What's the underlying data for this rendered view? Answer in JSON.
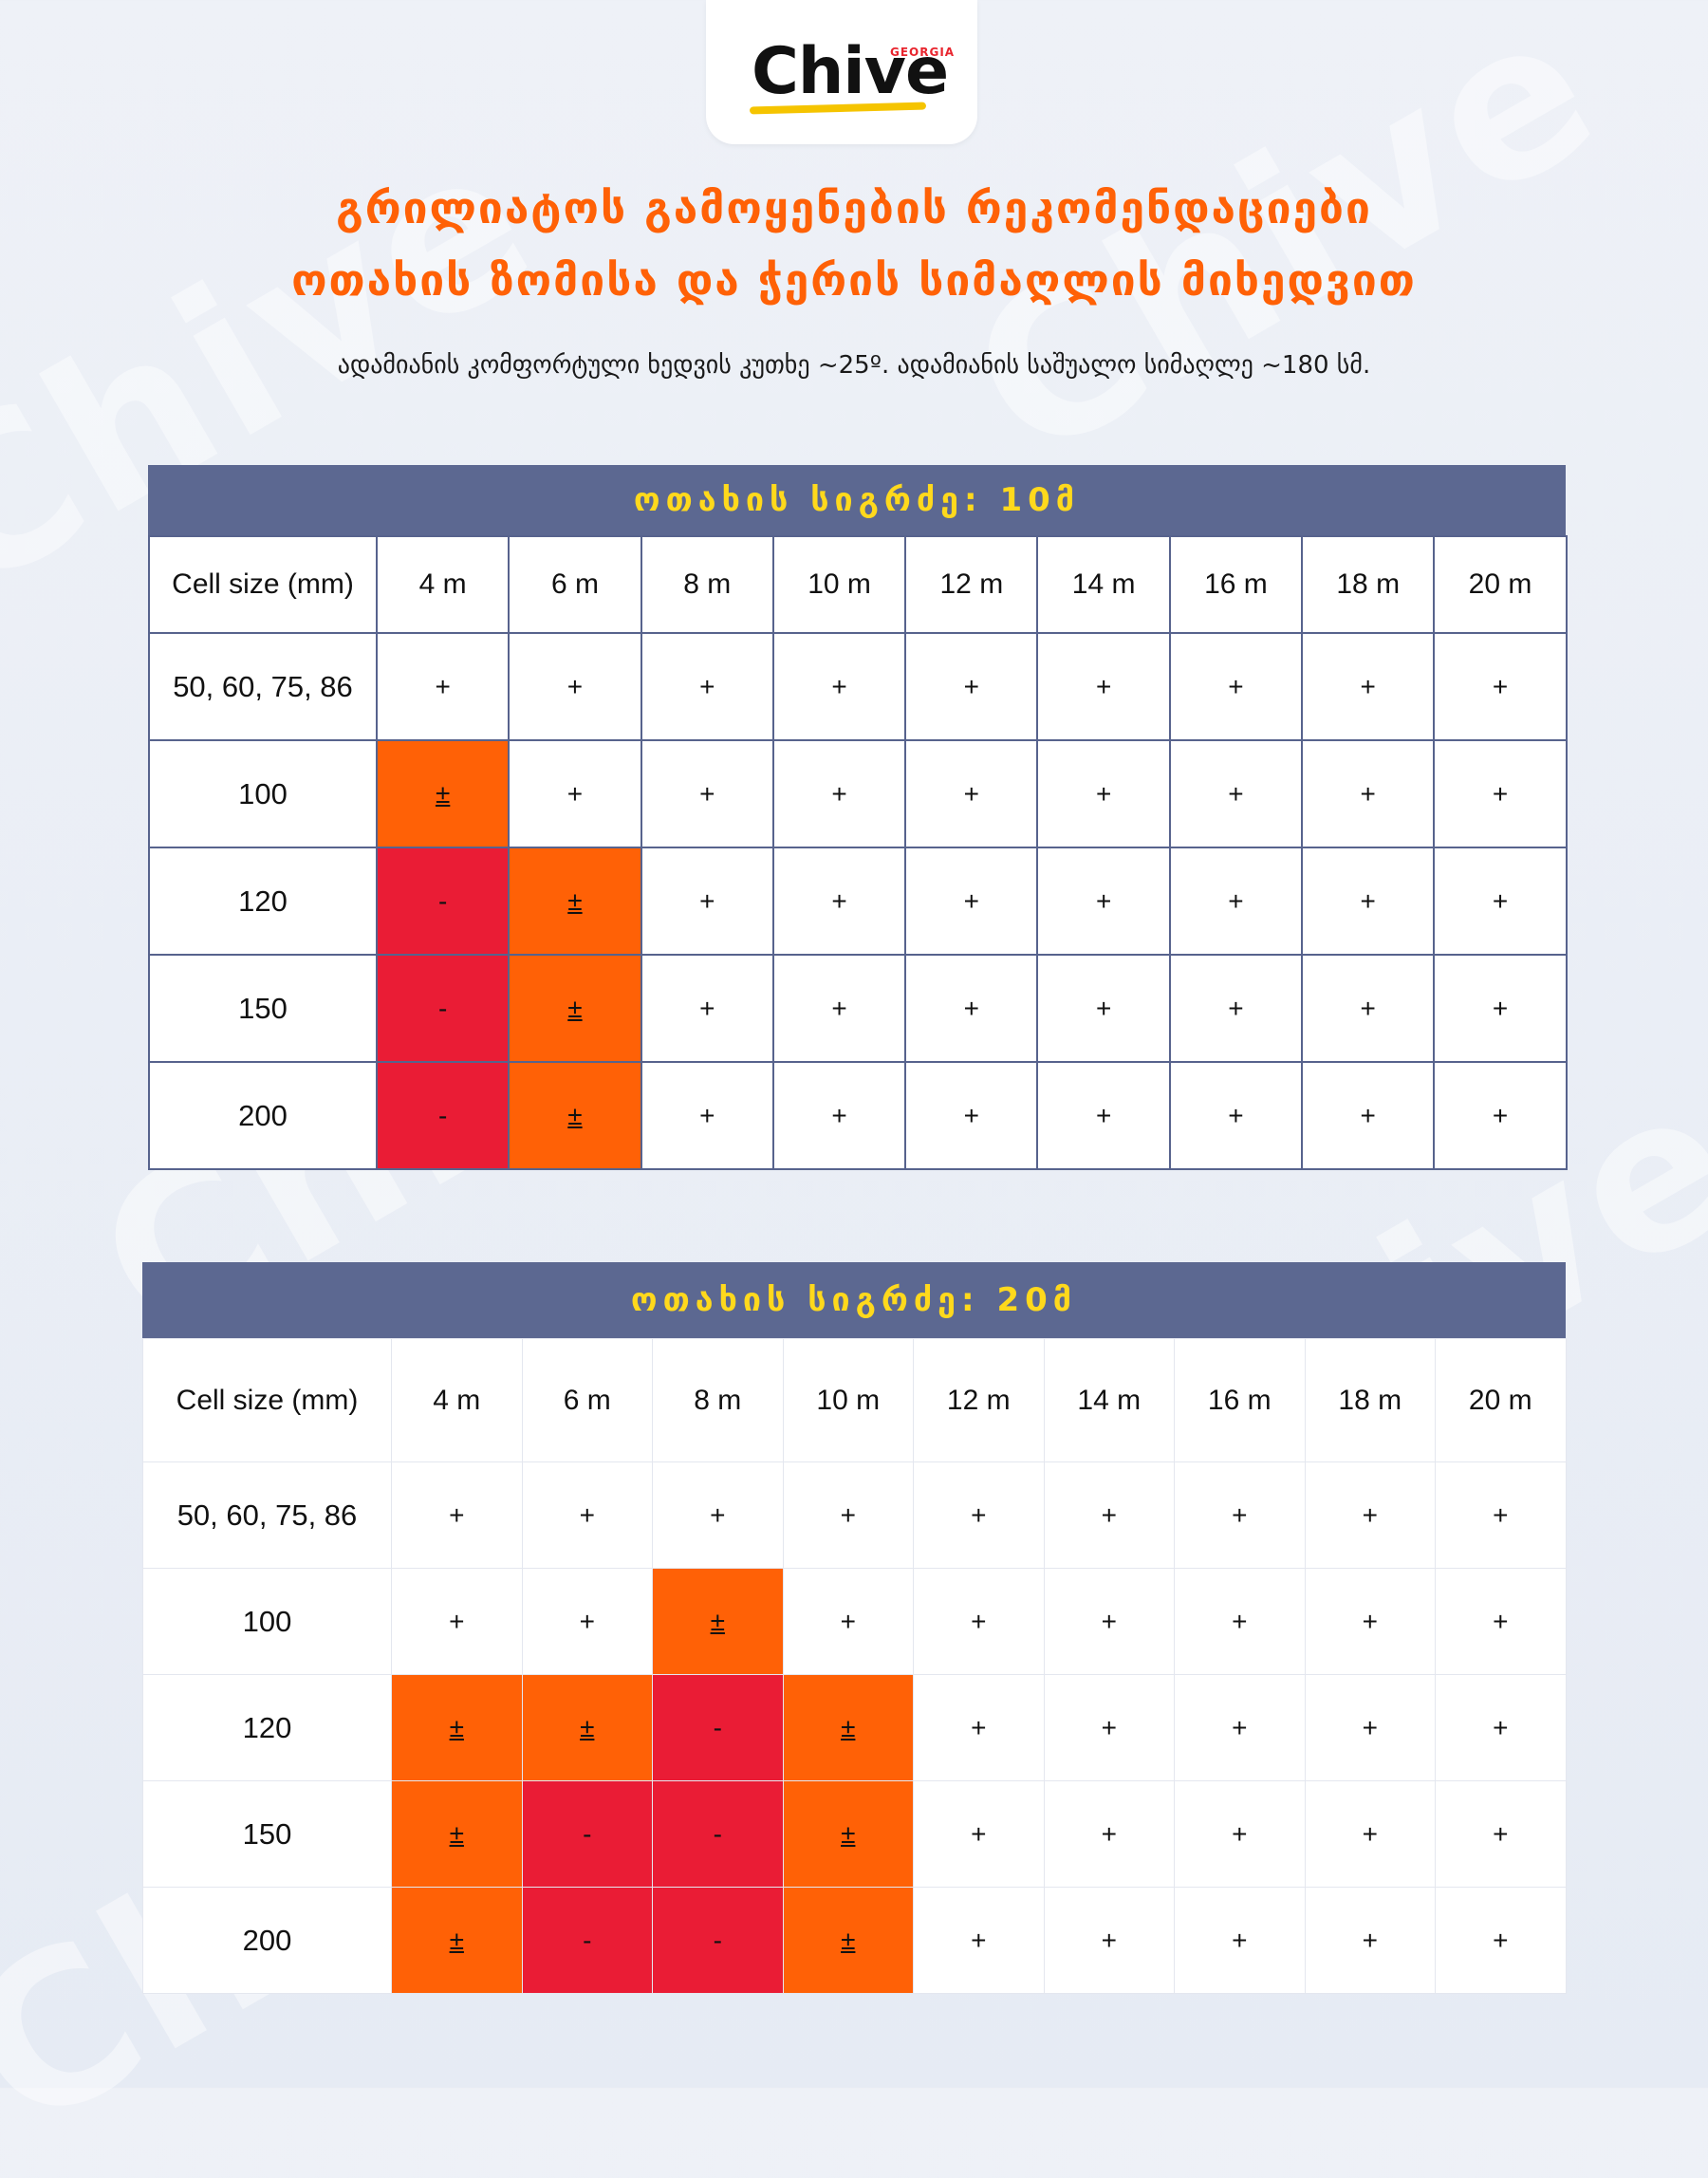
{
  "brand": {
    "name": "Chive",
    "tag": "GEORGIA"
  },
  "watermark": "Chive",
  "title": {
    "line1": "გრილიატოს გამოყენების რეკომენდაციები",
    "line2": "ოთახის ზომისა და ჭერის სიმაღლის მიხედვით"
  },
  "subtitle": "ადამიანის კომფორტული ხედვის კუთხე ~25º. ადამიანის საშუალო სიმაღლე ~180 სმ.",
  "colors": {
    "accent": "#ff6106",
    "header_band": "#5c6891",
    "header_text": "#ffd91c",
    "partial": "#ff6106",
    "bad": "#ea1c35"
  },
  "tables": [
    {
      "heading": "ოთახის სიგრძე: 10მ",
      "columns": [
        "Cell size (mm)",
        "4 m",
        "6 m",
        "8 m",
        "10 m",
        "12 m",
        "14 m",
        "16 m",
        "18 m",
        "20 m"
      ],
      "rows": [
        {
          "label": "50, 60, 75, 86",
          "cells": [
            "+",
            "+",
            "+",
            "+",
            "+",
            "+",
            "+",
            "+",
            "+"
          ]
        },
        {
          "label": "100",
          "cells": [
            "±",
            "+",
            "+",
            "+",
            "+",
            "+",
            "+",
            "+",
            "+"
          ]
        },
        {
          "label": "120",
          "cells": [
            "-",
            "±",
            "+",
            "+",
            "+",
            "+",
            "+",
            "+",
            "+"
          ]
        },
        {
          "label": "150",
          "cells": [
            "-",
            "±",
            "+",
            "+",
            "+",
            "+",
            "+",
            "+",
            "+"
          ]
        },
        {
          "label": "200",
          "cells": [
            "-",
            "±",
            "+",
            "+",
            "+",
            "+",
            "+",
            "+",
            "+"
          ]
        }
      ]
    },
    {
      "heading": "ოთახის სიგრძე: 20მ",
      "columns": [
        "Cell size (mm)",
        "4 m",
        "6 m",
        "8 m",
        "10 m",
        "12 m",
        "14 m",
        "16 m",
        "18 m",
        "20 m"
      ],
      "rows": [
        {
          "label": "50, 60, 75, 86",
          "cells": [
            "+",
            "+",
            "+",
            "+",
            "+",
            "+",
            "+",
            "+",
            "+"
          ]
        },
        {
          "label": "100",
          "cells": [
            "+",
            "+",
            "±",
            "+",
            "+",
            "+",
            "+",
            "+",
            "+"
          ]
        },
        {
          "label": "120",
          "cells": [
            "±",
            "±",
            "-",
            "±",
            "+",
            "+",
            "+",
            "+",
            "+"
          ]
        },
        {
          "label": "150",
          "cells": [
            "±",
            "-",
            "-",
            "±",
            "+",
            "+",
            "+",
            "+",
            "+"
          ]
        },
        {
          "label": "200",
          "cells": [
            "±",
            "-",
            "-",
            "±",
            "+",
            "+",
            "+",
            "+",
            "+"
          ]
        }
      ]
    }
  ]
}
